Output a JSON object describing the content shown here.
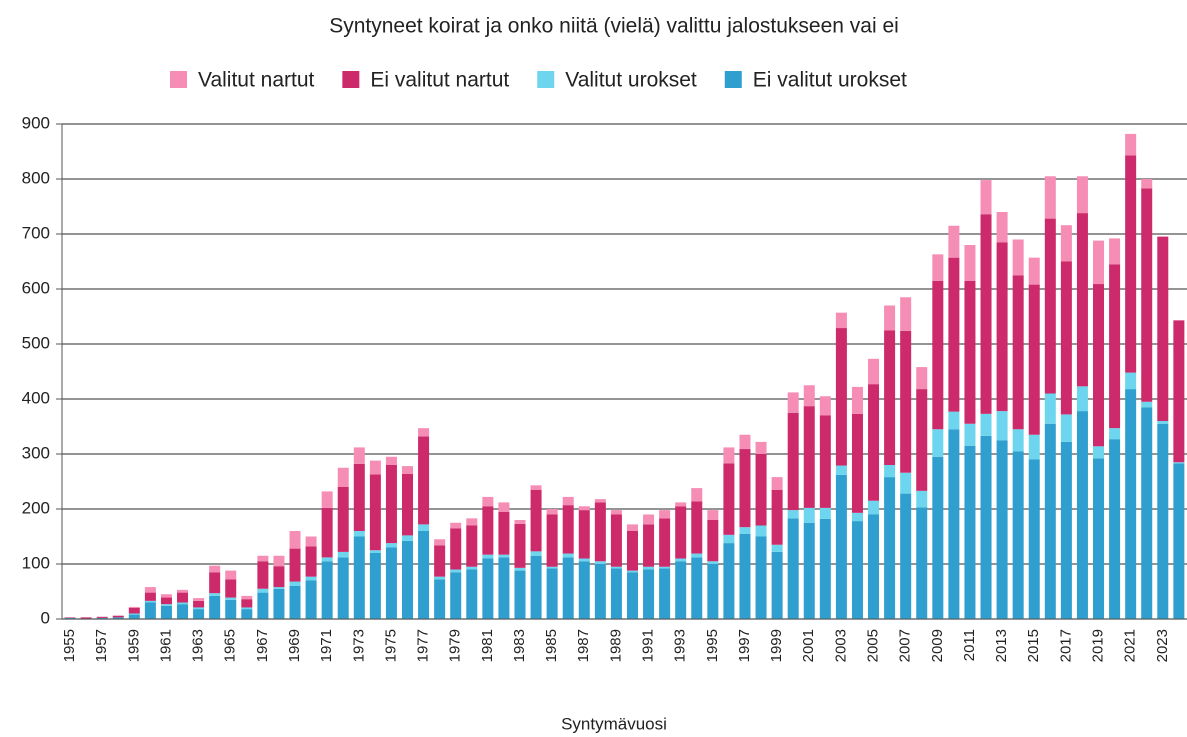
{
  "chart_data": {
    "type": "stacked_bar",
    "title": "Syntyneet koirat ja onko niitä (vielä) valittu jalostukseen vai ei",
    "x_label": "Syntymävuosi",
    "categories": [
      "1955",
      null,
      "1957",
      null,
      "1959",
      null,
      "1961",
      null,
      "1963",
      null,
      "1965",
      null,
      "1967",
      null,
      "1969",
      null,
      "1971",
      null,
      "1973",
      null,
      "1975",
      null,
      "1977",
      null,
      "1979",
      null,
      "1981",
      null,
      "1983",
      null,
      "1985",
      null,
      "1987",
      null,
      "1989",
      null,
      "1991",
      null,
      "1993",
      null,
      "1995",
      null,
      "1997",
      null,
      "1999",
      null,
      "2001",
      null,
      "2003",
      null,
      "2005",
      null,
      "2007",
      null,
      "2009",
      null,
      "2011",
      null,
      "2013",
      null,
      "2015",
      null,
      "2017",
      null,
      "2019",
      null,
      "2021",
      null,
      "2023",
      null
    ],
    "series": [
      {
        "name": "Ei valitut urokset",
        "color": "#2e9fce",
        "values": [
          2,
          1,
          2,
          3,
          8,
          30,
          24,
          27,
          18,
          42,
          35,
          18,
          48,
          55,
          60,
          70,
          105,
          112,
          150,
          120,
          130,
          142,
          160,
          72,
          85,
          90,
          110,
          112,
          88,
          115,
          92,
          112,
          105,
          100,
          92,
          85,
          90,
          92,
          105,
          112,
          100,
          138,
          155,
          150,
          122,
          183,
          175,
          182,
          262,
          178,
          190,
          258,
          228,
          203,
          295,
          345,
          315,
          333,
          325,
          305,
          290,
          355,
          322,
          378,
          292,
          327,
          418,
          385,
          355,
          283
        ]
      },
      {
        "name": "Valitut urokset",
        "color": "#6dd6ee",
        "values": [
          0,
          0,
          0,
          0,
          2,
          3,
          3,
          3,
          3,
          5,
          4,
          3,
          7,
          3,
          8,
          7,
          7,
          10,
          10,
          5,
          8,
          10,
          12,
          5,
          5,
          5,
          7,
          5,
          5,
          8,
          3,
          7,
          5,
          5,
          3,
          3,
          5,
          3,
          5,
          7,
          5,
          15,
          12,
          20,
          13,
          15,
          27,
          20,
          17,
          15,
          25,
          22,
          38,
          30,
          50,
          32,
          40,
          40,
          53,
          40,
          45,
          55,
          50,
          45,
          22,
          20,
          30,
          10,
          5,
          2
        ]
      },
      {
        "name": "Ei valitut nartut",
        "color": "#cc2a6a",
        "values": [
          1,
          2,
          2,
          3,
          10,
          15,
          12,
          18,
          12,
          38,
          33,
          15,
          50,
          38,
          60,
          55,
          90,
          118,
          122,
          138,
          142,
          112,
          160,
          57,
          75,
          75,
          88,
          78,
          80,
          112,
          95,
          88,
          88,
          107,
          95,
          72,
          77,
          88,
          95,
          95,
          75,
          130,
          142,
          130,
          100,
          177,
          185,
          168,
          250,
          180,
          212,
          245,
          258,
          185,
          270,
          280,
          260,
          363,
          307,
          280,
          273,
          318,
          278,
          315,
          295,
          298,
          395,
          388,
          335,
          258
        ]
      },
      {
        "name": "Valitut nartut",
        "color": "#f58db5",
        "values": [
          0,
          0,
          0,
          0,
          2,
          10,
          6,
          5,
          5,
          12,
          16,
          6,
          10,
          19,
          32,
          18,
          30,
          35,
          30,
          25,
          15,
          14,
          15,
          11,
          10,
          13,
          17,
          17,
          7,
          8,
          10,
          15,
          7,
          6,
          8,
          12,
          18,
          15,
          7,
          24,
          18,
          29,
          26,
          22,
          23,
          37,
          38,
          35,
          28,
          49,
          46,
          45,
          61,
          40,
          48,
          58,
          65,
          62,
          55,
          65,
          49,
          77,
          66,
          67,
          79,
          47,
          39,
          17,
          1,
          0
        ]
      }
    ],
    "ylim": [
      0,
      900
    ],
    "yticks": [
      0,
      100,
      200,
      300,
      400,
      500,
      600,
      700,
      800,
      900
    ],
    "grid": true
  }
}
